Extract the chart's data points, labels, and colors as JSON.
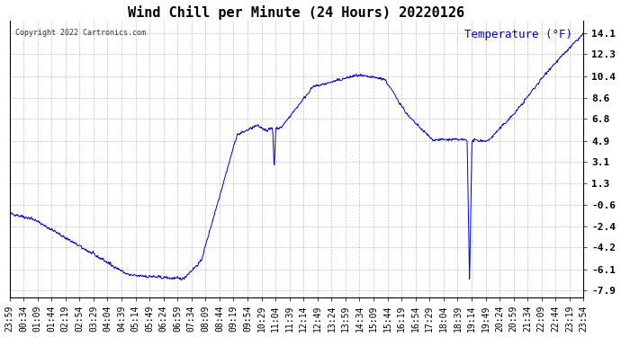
{
  "title": "Wind Chill per Minute (24 Hours) 20220126",
  "ylabel": "Temperature (°F)",
  "copyright_text": "Copyright 2022 Cartronics.com",
  "line_color": "#0000CC",
  "background_color": "#ffffff",
  "grid_color": "#aaaaaa",
  "yticks": [
    14.1,
    12.3,
    10.4,
    8.6,
    6.8,
    4.9,
    3.1,
    1.3,
    -0.6,
    -2.4,
    -4.2,
    -6.1,
    -7.9
  ],
  "ylim": [
    -8.5,
    15.2
  ],
  "x_tick_labels": [
    "23:59",
    "00:34",
    "01:09",
    "01:44",
    "02:19",
    "02:54",
    "03:29",
    "04:04",
    "04:39",
    "05:14",
    "05:49",
    "06:24",
    "06:59",
    "07:34",
    "08:09",
    "08:44",
    "09:19",
    "09:54",
    "10:29",
    "11:04",
    "11:39",
    "12:14",
    "12:49",
    "13:24",
    "13:59",
    "14:34",
    "15:09",
    "15:44",
    "16:19",
    "16:54",
    "17:29",
    "18:04",
    "18:39",
    "19:14",
    "19:49",
    "20:24",
    "20:59",
    "21:34",
    "22:09",
    "22:44",
    "23:19",
    "23:54"
  ],
  "title_color": "#000000",
  "ylabel_color": "#0000CC",
  "title_fontsize": 11,
  "copyright_fontsize": 6,
  "tick_fontsize": 7,
  "ylabel_fontsize": 9
}
